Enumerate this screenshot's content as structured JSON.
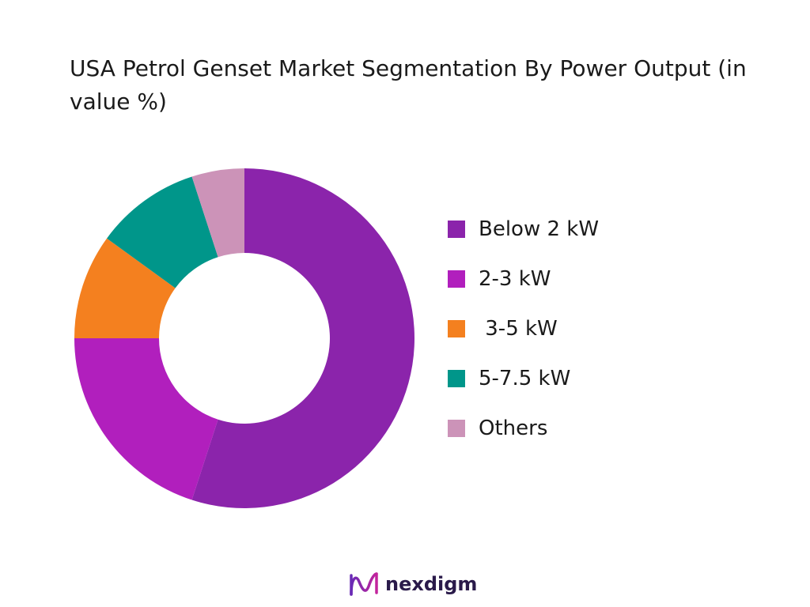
{
  "chart_data": {
    "type": "pie",
    "title": "USA Petrol Genset Market Segmentation By Power Output (in value %)",
    "categories": [
      "Below 2 kW",
      "2-3 kW",
      " 3-5 kW",
      "5-7.5 kW",
      "Others"
    ],
    "values": [
      55,
      20,
      10,
      10,
      5
    ],
    "unit": "value %",
    "colors": [
      "#8b24ab",
      "#b11fbd",
      "#f4801f",
      "#00968a",
      "#cc93b8"
    ],
    "donut": true,
    "start_angle": "top",
    "direction": "clockwise",
    "legend": "right"
  },
  "brand": {
    "name": "nexdigm",
    "icon": "nexdigm-wave-logo",
    "color": "#2a1a4a"
  }
}
